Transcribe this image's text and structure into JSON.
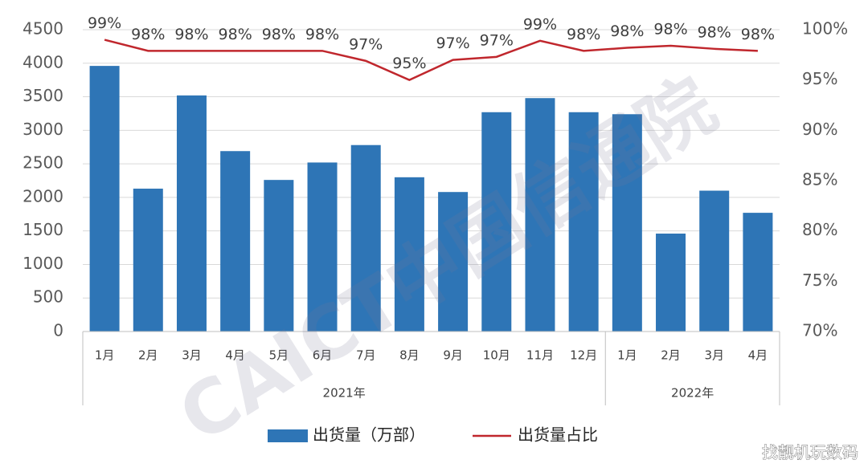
{
  "chart_data": {
    "type": "bar",
    "watermark": "CAICT中国信通院",
    "credit": "找靓机玩数码",
    "categories": [
      "1月",
      "2月",
      "3月",
      "4月",
      "5月",
      "6月",
      "7月",
      "8月",
      "9月",
      "10月",
      "11月",
      "12月",
      "1月",
      "2月",
      "3月",
      "4月"
    ],
    "groups": [
      {
        "label": "2021年",
        "span": 12
      },
      {
        "label": "2022年",
        "span": 4
      }
    ],
    "series": [
      {
        "name": "出货量（万部）",
        "type": "bar",
        "color": "#2e75b6",
        "values": [
          3960,
          2130,
          3520,
          2690,
          2260,
          2520,
          2780,
          2300,
          2080,
          3270,
          3480,
          3270,
          3240,
          1460,
          2100,
          1770
        ]
      },
      {
        "name": "出货量占比",
        "type": "line",
        "axis": "y2",
        "color": "#c0272d",
        "values": [
          99.0,
          97.9,
          97.9,
          97.9,
          97.9,
          97.9,
          96.9,
          95.0,
          97.0,
          97.3,
          98.9,
          97.9,
          98.2,
          98.4,
          98.1,
          97.9
        ],
        "value_labels": [
          "99%",
          "98%",
          "98%",
          "98%",
          "98%",
          "98%",
          "97%",
          "95%",
          "97%",
          "97%",
          "99%",
          "98%",
          "98%",
          "98%",
          "98%",
          "98%"
        ]
      }
    ],
    "ylim": [
      0,
      4500
    ],
    "yticks": [
      0,
      500,
      1000,
      1500,
      2000,
      2500,
      3000,
      3500,
      4000,
      4500
    ],
    "y2lim": [
      70,
      100
    ],
    "y2ticks": [
      {
        "value": 70,
        "label": "70%"
      },
      {
        "value": 75,
        "label": "75%"
      },
      {
        "value": 80,
        "label": "80%"
      },
      {
        "value": 85,
        "label": "85%"
      },
      {
        "value": 90,
        "label": "90%"
      },
      {
        "value": 95,
        "label": "95%"
      },
      {
        "value": 100,
        "label": "100%"
      }
    ],
    "grid": true,
    "legend": "bottom"
  }
}
